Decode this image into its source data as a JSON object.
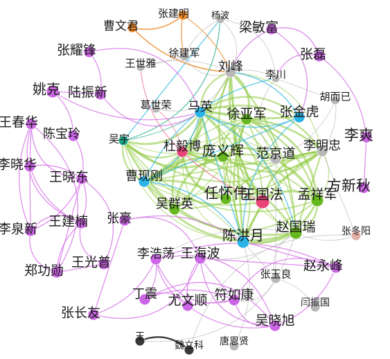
{
  "colors": {
    "purple": "#cc66e6",
    "purple_edge": "#d77ae8",
    "green": "#66b81e",
    "green_edge": "#8cc83c",
    "cyan": "#29b3e6",
    "cyan_edge": "#36b8e2",
    "orange": "#f28c28",
    "orange_edge": "#ee8f35",
    "gray": "#b8b8b8",
    "gray_edge": "#b5b5b5",
    "pink": "#e8447a",
    "pink_edge": "#f0799a",
    "teal": "#1aa886",
    "teal_edge": "#3fb89a",
    "dark": "#3a3a38",
    "salmon": "#e3b0a6"
  },
  "nodes": [
    {
      "id": "caowenjun",
      "label": "曹文君",
      "color": "orange"
    },
    {
      "id": "zhangjianming",
      "label": "张建明",
      "color": "orange"
    },
    {
      "id": "yangbo",
      "label": "杨波",
      "color": "gray"
    },
    {
      "id": "liangminfu",
      "label": "梁敏富",
      "color": "purple"
    },
    {
      "id": "zhangyaofeng",
      "label": "张耀锋",
      "color": "purple"
    },
    {
      "id": "xujianjun",
      "label": "徐建军",
      "color": "gray"
    },
    {
      "id": "wangshiya",
      "label": "王世雅",
      "color": "gray"
    },
    {
      "id": "liufeng",
      "label": "刘峰",
      "color": "gray"
    },
    {
      "id": "zhanglei",
      "label": "张磊",
      "color": "purple"
    },
    {
      "id": "lichuan",
      "label": "李川",
      "color": "gray"
    },
    {
      "id": "yaoke",
      "label": "姚克",
      "color": "purple"
    },
    {
      "id": "luzhenxin",
      "label": "陆振新",
      "color": "purple"
    },
    {
      "id": "huerji",
      "label": "胡而已",
      "color": "gray"
    },
    {
      "id": "geshirong",
      "label": "葛世荣",
      "color": "gray"
    },
    {
      "id": "maying",
      "label": "马英",
      "color": "cyan"
    },
    {
      "id": "xuyajun",
      "label": "徐亚军",
      "color": "green"
    },
    {
      "id": "zhangjinhu",
      "label": "张金虎",
      "color": "cyan"
    },
    {
      "id": "wangchunhua",
      "label": "王春华",
      "color": "purple"
    },
    {
      "id": "chenbaoling",
      "label": "陈宝玲",
      "color": "purple"
    },
    {
      "id": "wuyu",
      "label": "吴宇",
      "color": "teal"
    },
    {
      "id": "lishuang",
      "label": "李爽",
      "color": "purple"
    },
    {
      "id": "duyibo",
      "label": "杜毅博",
      "color": "pink"
    },
    {
      "id": "pangyihui",
      "label": "庞义辉",
      "color": "green"
    },
    {
      "id": "fanjingdao",
      "label": "范京道",
      "color": "gray"
    },
    {
      "id": "limingzhong",
      "label": "李明忠",
      "color": "gray"
    },
    {
      "id": "lixiaohua",
      "label": "李晓华",
      "color": "purple"
    },
    {
      "id": "wangxiaodong",
      "label": "王晓东",
      "color": "purple"
    },
    {
      "id": "caoxiangang",
      "label": "曹现刚",
      "color": "cyan"
    },
    {
      "id": "fangxinqiu",
      "label": "方新秋",
      "color": "purple"
    },
    {
      "id": "renhuaiwei",
      "label": "任怀伟",
      "color": "green"
    },
    {
      "id": "wangguofa",
      "label": "王国法",
      "color": "pink"
    },
    {
      "id": "mengxiangjun",
      "label": "孟祥军",
      "color": "green"
    },
    {
      "id": "wuqunying",
      "label": "吴群英",
      "color": "green"
    },
    {
      "id": "liquanxin",
      "label": "李泉新",
      "color": "purple"
    },
    {
      "id": "wangjiannan",
      "label": "王建楠",
      "color": "purple"
    },
    {
      "id": "zhanghao",
      "label": "张豪",
      "color": "purple"
    },
    {
      "id": "zhaoguorui",
      "label": "赵国瑞",
      "color": "green"
    },
    {
      "id": "zhangdongyang",
      "label": "张冬阳",
      "color": "salmon"
    },
    {
      "id": "chenhongyue",
      "label": "陈洪月",
      "color": "cyan"
    },
    {
      "id": "zhenggonglve",
      "label": "郑功勋",
      "color": "purple"
    },
    {
      "id": "wangguangpu",
      "label": "王光普",
      "color": "purple"
    },
    {
      "id": "lihaodang",
      "label": "李浩荡",
      "color": "purple"
    },
    {
      "id": "wanghaibo",
      "label": "王海波",
      "color": "purple"
    },
    {
      "id": "zhaoyongfeng",
      "label": "赵永峰",
      "color": "purple"
    },
    {
      "id": "zhangyuliang",
      "label": "张玉良",
      "color": "gray"
    },
    {
      "id": "dingzhen",
      "label": "丁震",
      "color": "purple"
    },
    {
      "id": "youwenshun",
      "label": "尤文顺",
      "color": "purple"
    },
    {
      "id": "furukang",
      "label": "符如康",
      "color": "purple"
    },
    {
      "id": "yanzhenguo",
      "label": "闫振国",
      "color": "gray"
    },
    {
      "id": "zhangchangyou",
      "label": "张长友",
      "color": "purple"
    },
    {
      "id": "wuxiaoxu",
      "label": "吴晓旭",
      "color": "purple"
    },
    {
      "id": "wang",
      "label": "王",
      "color": "dark"
    },
    {
      "id": "weilike",
      "label": "魏立科",
      "color": "dark"
    },
    {
      "id": "tangenxian",
      "label": "唐恩贤",
      "color": "gray"
    }
  ]
}
